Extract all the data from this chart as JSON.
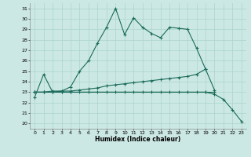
{
  "xlabel": "Humidex (Indice chaleur)",
  "bg_color": "#cce8e4",
  "grid_color": "#aad4cc",
  "line_color": "#1a6b5a",
  "ylim": [
    19.5,
    31.5
  ],
  "xlim": [
    -0.5,
    23.5
  ],
  "yticks": [
    20,
    21,
    22,
    23,
    24,
    25,
    26,
    27,
    28,
    29,
    30,
    31
  ],
  "xticks": [
    0,
    1,
    2,
    3,
    4,
    5,
    6,
    7,
    8,
    9,
    10,
    11,
    12,
    13,
    14,
    15,
    16,
    17,
    18,
    19,
    20,
    21,
    22,
    23
  ],
  "line1_x": [
    0,
    1,
    2,
    3,
    4,
    5,
    6,
    7,
    8,
    9,
    10,
    11,
    12,
    13,
    14,
    15,
    16,
    17,
    18,
    19,
    20
  ],
  "line1_y": [
    22.5,
    24.7,
    23.0,
    23.1,
    23.5,
    25.0,
    26.0,
    27.7,
    29.2,
    31.0,
    28.5,
    30.1,
    29.2,
    28.6,
    28.2,
    29.2,
    29.1,
    29.0,
    27.2,
    25.2,
    23.2
  ],
  "line2_x": [
    0,
    1,
    2,
    3,
    4,
    5,
    6,
    7,
    8,
    9,
    10,
    11,
    12,
    13,
    14,
    15,
    16,
    17,
    18,
    19
  ],
  "line2_y": [
    23.0,
    23.0,
    23.1,
    23.1,
    23.1,
    23.2,
    23.3,
    23.4,
    23.6,
    23.7,
    23.8,
    23.9,
    24.0,
    24.1,
    24.2,
    24.3,
    24.4,
    24.5,
    24.7,
    25.2
  ],
  "line3_x": [
    0,
    1,
    2,
    3,
    4,
    5,
    6,
    7,
    8,
    9,
    10,
    11,
    12,
    13,
    14,
    15,
    16,
    17,
    18,
    19,
    20
  ],
  "line3_y": [
    23.0,
    23.0,
    23.0,
    23.0,
    23.0,
    23.0,
    23.0,
    23.0,
    23.0,
    23.0,
    23.0,
    23.0,
    23.0,
    23.0,
    23.0,
    23.0,
    23.0,
    23.0,
    23.0,
    23.0,
    23.0
  ],
  "line4_x": [
    0,
    1,
    2,
    3,
    4,
    19,
    20,
    21,
    22,
    23
  ],
  "line4_y": [
    23.0,
    23.0,
    23.0,
    23.0,
    23.0,
    23.0,
    22.8,
    22.3,
    21.3,
    20.2
  ]
}
